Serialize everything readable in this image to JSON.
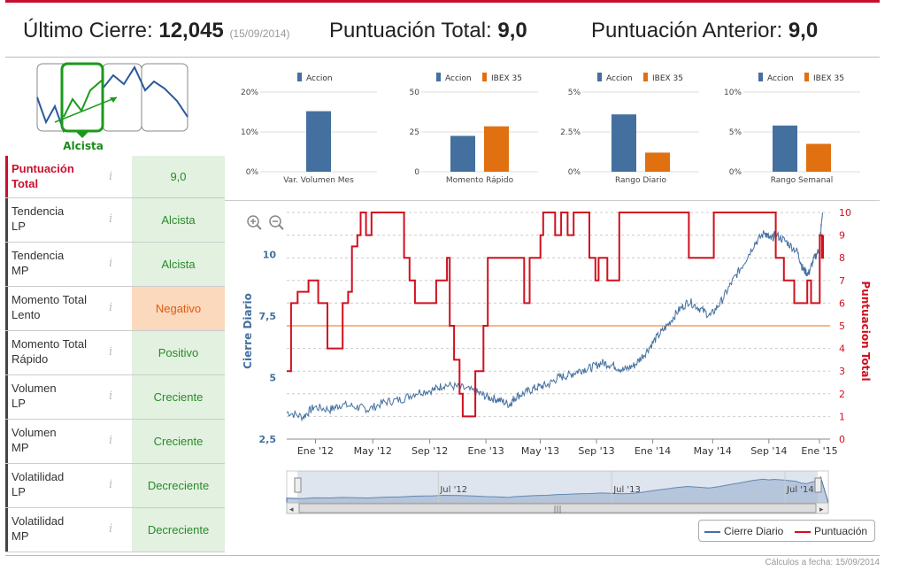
{
  "header": {
    "ultimo_label": "Último Cierre:",
    "ultimo_value": "12,045",
    "ultimo_date": "(15/09/2014)",
    "total_label": "Puntuación Total:",
    "total_value": "9,0",
    "anterior_label": "Puntuación Anterior:",
    "anterior_value": "9,0"
  },
  "trend": {
    "label": "Alcista"
  },
  "indicators": [
    {
      "label": "Puntuación Total",
      "value": "9,0",
      "status": "positive"
    },
    {
      "label": "Tendencia LP",
      "value": "Alcista",
      "status": "positive"
    },
    {
      "label": "Tendencia MP",
      "value": "Alcista",
      "status": "positive"
    },
    {
      "label": "Momento Total Lento",
      "value": "Negativo",
      "status": "negative"
    },
    {
      "label": "Momento Total Rápido",
      "value": "Positivo",
      "status": "positive"
    },
    {
      "label": "Volumen LP",
      "value": "Creciente",
      "status": "positive"
    },
    {
      "label": "Volumen MP",
      "value": "Creciente",
      "status": "positive"
    },
    {
      "label": "Volatilidad LP",
      "value": "Decreciente",
      "status": "positive"
    },
    {
      "label": "Volatilidad MP",
      "value": "Decreciente",
      "status": "positive"
    }
  ],
  "colors": {
    "accion": "#44709f",
    "ibex": "#e07010",
    "red": "#d0101e",
    "orange_line": "#f0a060"
  },
  "chart_data": [
    {
      "type": "bar",
      "title": "Var. Volumen Mes",
      "legend": [
        "Accion"
      ],
      "yticks": [
        "20%",
        "10%",
        "0%"
      ],
      "ylim": [
        0,
        20
      ],
      "series": [
        {
          "name": "Accion",
          "values": [
            15.2
          ]
        }
      ]
    },
    {
      "type": "bar",
      "title": "Momento Rápido",
      "legend": [
        "Accion",
        "IBEX 35"
      ],
      "yticks": [
        "50",
        "25",
        "0"
      ],
      "ylim": [
        0,
        50
      ],
      "series": [
        {
          "name": "Accion",
          "values": [
            22.5
          ]
        },
        {
          "name": "IBEX 35",
          "values": [
            28.5
          ]
        }
      ]
    },
    {
      "type": "bar",
      "title": "Rango Diario",
      "legend": [
        "Accion",
        "IBEX 35"
      ],
      "yticks": [
        "5%",
        "2.5%",
        "0%"
      ],
      "ylim": [
        0,
        5
      ],
      "series": [
        {
          "name": "Accion",
          "values": [
            3.6
          ]
        },
        {
          "name": "IBEX 35",
          "values": [
            1.2
          ]
        }
      ]
    },
    {
      "type": "bar",
      "title": "Rango Semanal",
      "legend": [
        "Accion",
        "IBEX 35"
      ],
      "yticks": [
        "10%",
        "5%",
        "0%"
      ],
      "ylim": [
        0,
        10
      ],
      "series": [
        {
          "name": "Accion",
          "values": [
            5.8
          ]
        },
        {
          "name": "IBEX 35",
          "values": [
            3.5
          ]
        }
      ]
    },
    {
      "type": "line",
      "ylabel_left": "Cierre Diario",
      "ylabel_right": "Puntuacion Total",
      "left_ticks": [
        "10",
        "7,5",
        "5",
        "2,5"
      ],
      "left_range": [
        2.5,
        11.7
      ],
      "right_ticks": [
        "10",
        "9",
        "8",
        "7",
        "6",
        "5",
        "4",
        "3",
        "2",
        "1",
        "0"
      ],
      "right_range": [
        0,
        10
      ],
      "x_labels": [
        "Ene '12",
        "May '12",
        "Sep '12",
        "Ene '13",
        "May '13",
        "Sep '13",
        "Ene '14",
        "May '14",
        "Sep '14",
        "Ene '15"
      ],
      "reference_score": 5,
      "series": [
        {
          "name": "Cierre Diario",
          "points": [
            [
              0,
              3.6
            ],
            [
              3,
              3.4
            ],
            [
              5,
              3.8
            ],
            [
              8,
              3.7
            ],
            [
              10,
              3.9
            ],
            [
              13,
              3.8
            ],
            [
              15,
              3.7
            ],
            [
              18,
              4.0
            ],
            [
              21,
              4.1
            ],
            [
              24,
              4.4
            ],
            [
              27,
              4.5
            ],
            [
              29,
              4.7
            ],
            [
              32,
              4.6
            ],
            [
              35,
              4.4
            ],
            [
              37,
              4.2
            ],
            [
              39,
              4.1
            ],
            [
              41,
              3.9
            ],
            [
              42,
              4.2
            ],
            [
              44,
              4.4
            ],
            [
              46,
              4.6
            ],
            [
              48,
              4.7
            ],
            [
              50,
              5.0
            ],
            [
              52,
              5.1
            ],
            [
              54,
              5.3
            ],
            [
              56,
              5.4
            ],
            [
              58,
              5.6
            ],
            [
              60,
              5.5
            ],
            [
              62,
              5.3
            ],
            [
              64,
              5.5
            ],
            [
              66,
              6.0
            ],
            [
              68,
              6.6
            ],
            [
              70,
              7.1
            ],
            [
              72,
              7.7
            ],
            [
              74,
              8.1
            ],
            [
              76,
              7.8
            ],
            [
              78,
              7.5
            ],
            [
              80,
              8.1
            ],
            [
              82,
              8.9
            ],
            [
              84,
              9.6
            ],
            [
              86,
              10.4
            ],
            [
              88,
              10.9
            ],
            [
              89,
              10.6
            ],
            [
              90,
              10.8
            ],
            [
              92,
              10.5
            ],
            [
              94,
              10.1
            ],
            [
              95,
              9.4
            ],
            [
              96,
              9.2
            ],
            [
              97,
              9.8
            ],
            [
              98,
              10.2
            ],
            [
              98.6,
              11.7
            ]
          ]
        },
        {
          "name": "Puntuación",
          "points": [
            [
              0,
              3
            ],
            [
              0.8,
              3
            ],
            [
              0.8,
              6
            ],
            [
              2,
              6
            ],
            [
              2,
              6.5
            ],
            [
              4,
              6.5
            ],
            [
              4,
              7
            ],
            [
              5.8,
              7
            ],
            [
              5.8,
              6
            ],
            [
              7.5,
              6
            ],
            [
              7.5,
              4
            ],
            [
              10.3,
              4
            ],
            [
              10.3,
              6
            ],
            [
              11.3,
              6
            ],
            [
              11.3,
              6.5
            ],
            [
              12,
              6.5
            ],
            [
              12,
              8.5
            ],
            [
              13,
              8.5
            ],
            [
              13,
              9
            ],
            [
              13.6,
              9
            ],
            [
              13.6,
              10
            ],
            [
              14.6,
              10
            ],
            [
              14.6,
              9
            ],
            [
              15.6,
              9
            ],
            [
              15.6,
              10
            ],
            [
              21.6,
              10
            ],
            [
              21.6,
              8
            ],
            [
              22.6,
              8
            ],
            [
              22.6,
              7
            ],
            [
              23.6,
              7
            ],
            [
              23.6,
              6
            ],
            [
              27.5,
              6
            ],
            [
              27.5,
              7
            ],
            [
              29.5,
              7
            ],
            [
              29.5,
              8
            ],
            [
              30,
              8
            ],
            [
              30,
              5
            ],
            [
              30.8,
              5
            ],
            [
              30.8,
              3.5
            ],
            [
              31.8,
              3.5
            ],
            [
              31.8,
              2
            ],
            [
              32.4,
              2
            ],
            [
              32.4,
              1
            ],
            [
              34.7,
              1
            ],
            [
              34.7,
              3
            ],
            [
              36.2,
              3
            ],
            [
              36.2,
              5
            ],
            [
              37,
              5
            ],
            [
              37,
              8
            ],
            [
              43.7,
              8
            ],
            [
              43.7,
              6
            ],
            [
              44.7,
              6
            ],
            [
              44.7,
              8
            ],
            [
              46.7,
              8
            ],
            [
              46.7,
              9
            ],
            [
              47.2,
              9
            ],
            [
              47.2,
              10
            ],
            [
              49.4,
              10
            ],
            [
              49.4,
              9
            ],
            [
              50.5,
              9
            ],
            [
              50.5,
              10
            ],
            [
              51.7,
              10
            ],
            [
              51.7,
              9
            ],
            [
              52.8,
              9
            ],
            [
              52.8,
              10
            ],
            [
              55.7,
              10
            ],
            [
              55.7,
              8
            ],
            [
              56.8,
              8
            ],
            [
              56.8,
              7
            ],
            [
              57.4,
              7
            ],
            [
              57.4,
              8
            ],
            [
              59,
              8
            ],
            [
              59,
              7
            ],
            [
              61.2,
              7
            ],
            [
              61.2,
              10
            ],
            [
              74,
              10
            ],
            [
              74,
              8
            ],
            [
              78.6,
              8
            ],
            [
              78.6,
              10
            ],
            [
              90,
              10
            ],
            [
              90,
              8
            ],
            [
              91.5,
              8
            ],
            [
              91.5,
              7
            ],
            [
              93.4,
              7
            ],
            [
              93.4,
              6
            ],
            [
              95.8,
              6
            ],
            [
              95.8,
              7
            ],
            [
              96.5,
              7
            ],
            [
              96.5,
              6
            ],
            [
              98.1,
              6
            ],
            [
              98.1,
              9
            ],
            [
              98.5,
              9
            ],
            [
              98.5,
              8
            ],
            [
              98.7,
              8
            ],
            [
              98.7,
              9
            ]
          ]
        }
      ],
      "navigator_labels": [
        "Jul '12",
        "Jul '13",
        "Jul '14"
      ]
    }
  ],
  "legend": {
    "cierre": "Cierre Diario",
    "puntuacion": "Puntuación"
  },
  "footer": "Cálculos a fecha: 15/09/2014"
}
